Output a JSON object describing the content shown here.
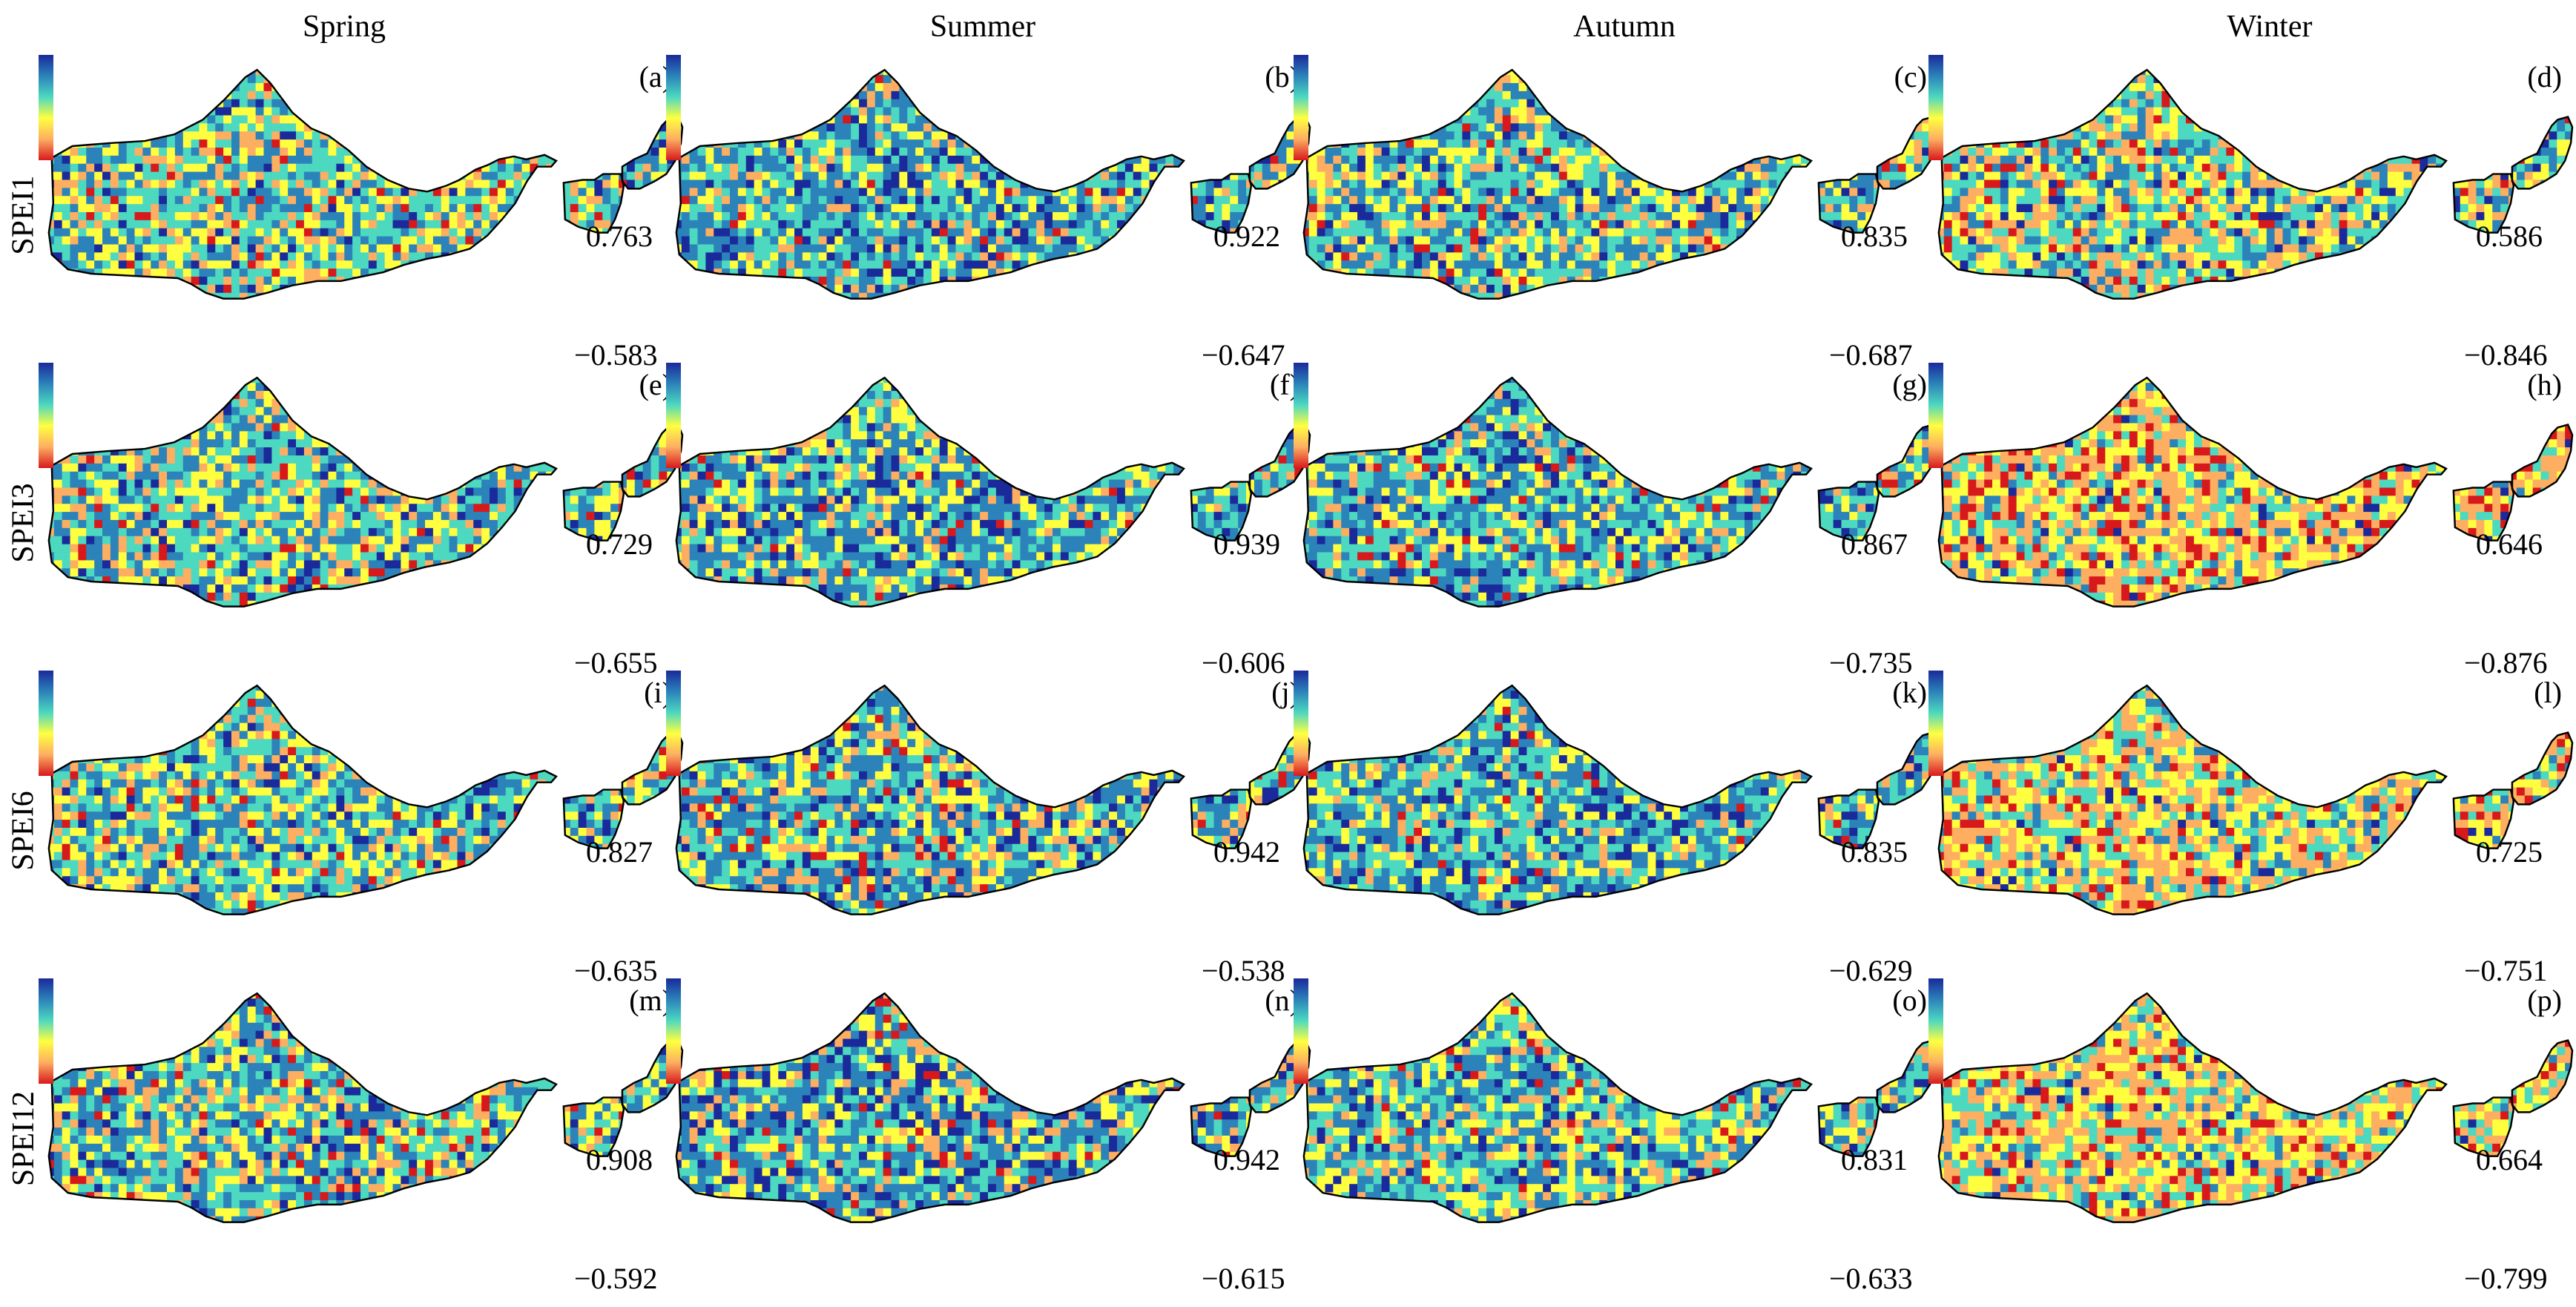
{
  "figure": {
    "columns": [
      "Spring",
      "Summer",
      "Autumn",
      "Winter"
    ],
    "rows": [
      "SPEI1",
      "SPEI3",
      "SPEI6",
      "SPEI12"
    ],
    "colormap": [
      "#d7191c",
      "#fdae61",
      "#ffff40",
      "#4dd8c0",
      "#2b83ba",
      "#1a2a9a"
    ],
    "panels": [
      {
        "letter": "(a)",
        "max": "0.763",
        "min": "−0.583",
        "fractions": [
          0.04,
          0.16,
          0.22,
          0.3,
          0.22,
          0.06
        ]
      },
      {
        "letter": "(b)",
        "max": "0.922",
        "min": "−0.647",
        "fractions": [
          0.02,
          0.08,
          0.16,
          0.26,
          0.34,
          0.14
        ]
      },
      {
        "letter": "(c)",
        "max": "0.835",
        "min": "−0.687",
        "fractions": [
          0.04,
          0.12,
          0.2,
          0.28,
          0.28,
          0.08
        ]
      },
      {
        "letter": "(d)",
        "max": "0.586",
        "min": "−0.846",
        "fractions": [
          0.06,
          0.18,
          0.22,
          0.28,
          0.2,
          0.06
        ]
      },
      {
        "letter": "(e)",
        "max": "0.729",
        "min": "−0.655",
        "fractions": [
          0.04,
          0.14,
          0.2,
          0.3,
          0.24,
          0.08
        ]
      },
      {
        "letter": "(f)",
        "max": "0.939",
        "min": "−0.606",
        "fractions": [
          0.03,
          0.1,
          0.18,
          0.24,
          0.32,
          0.13
        ]
      },
      {
        "letter": "(g)",
        "max": "0.867",
        "min": "−0.735",
        "fractions": [
          0.03,
          0.1,
          0.18,
          0.28,
          0.3,
          0.11
        ]
      },
      {
        "letter": "(h)",
        "max": "0.646",
        "min": "−0.876",
        "fractions": [
          0.14,
          0.34,
          0.26,
          0.16,
          0.08,
          0.02
        ]
      },
      {
        "letter": "(i)",
        "max": "0.827",
        "min": "−0.635",
        "fractions": [
          0.04,
          0.12,
          0.2,
          0.3,
          0.26,
          0.08
        ]
      },
      {
        "letter": "(j)",
        "max": "0.942",
        "min": "−0.538",
        "fractions": [
          0.04,
          0.12,
          0.18,
          0.24,
          0.3,
          0.12
        ]
      },
      {
        "letter": "(k)",
        "max": "0.835",
        "min": "−0.629",
        "fractions": [
          0.03,
          0.08,
          0.16,
          0.3,
          0.32,
          0.11
        ]
      },
      {
        "letter": "(l)",
        "max": "0.725",
        "min": "−0.751",
        "fractions": [
          0.1,
          0.3,
          0.28,
          0.2,
          0.1,
          0.02
        ]
      },
      {
        "letter": "(m)",
        "max": "0.908",
        "min": "−0.592",
        "fractions": [
          0.04,
          0.14,
          0.2,
          0.26,
          0.28,
          0.08
        ]
      },
      {
        "letter": "(n)",
        "max": "0.942",
        "min": "−0.615",
        "fractions": [
          0.03,
          0.12,
          0.16,
          0.22,
          0.32,
          0.15
        ]
      },
      {
        "letter": "(o)",
        "max": "0.831",
        "min": "−0.633",
        "fractions": [
          0.03,
          0.1,
          0.2,
          0.3,
          0.28,
          0.09
        ]
      },
      {
        "letter": "(p)",
        "max": "0.664",
        "min": "−0.799",
        "fractions": [
          0.1,
          0.32,
          0.28,
          0.2,
          0.08,
          0.02
        ]
      }
    ]
  }
}
